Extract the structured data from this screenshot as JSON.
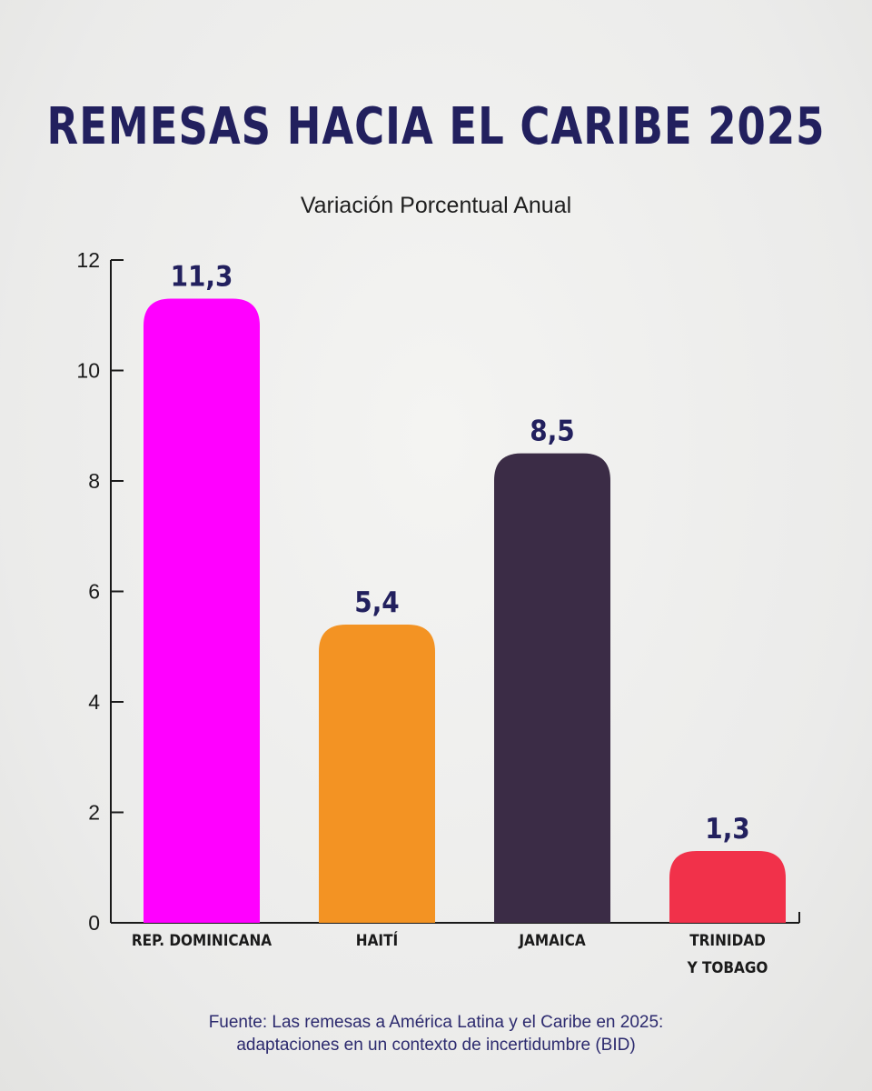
{
  "chart_data": {
    "type": "bar",
    "title": "REMESAS HACIA EL CARIBE 2025",
    "subtitle": "Variación Porcentual Anual",
    "categories": [
      [
        "REP. DOMINICANA"
      ],
      [
        "HAITÍ"
      ],
      [
        "JAMAICA"
      ],
      [
        "TRINIDAD",
        "Y TOBAGO"
      ]
    ],
    "values": [
      11.3,
      5.4,
      8.5,
      1.3
    ],
    "value_labels": [
      "11,3",
      "5,4",
      "8,5",
      "1,3"
    ],
    "colors": [
      "#ff00ff",
      "#f39323",
      "#3b2c46",
      "#f1314a"
    ],
    "yticks": [
      0,
      2,
      4,
      6,
      8,
      10,
      12
    ],
    "ylim": [
      0,
      12
    ],
    "xlabel": "",
    "ylabel": ""
  },
  "source": {
    "line1": "Fuente: Las remesas a América Latina y el Caribe en 2025:",
    "line2": "adaptaciones en un contexto de incertidumbre (BID)"
  }
}
